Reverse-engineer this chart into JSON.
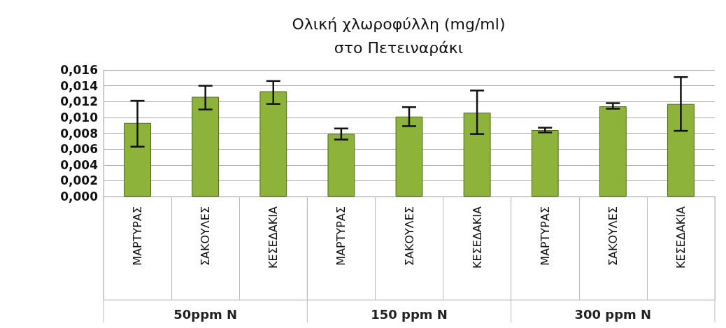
{
  "chart_data": {
    "type": "bar",
    "title": "Ολική χλωροφύλλη (mg/ml)\nστο Πετειναράκι",
    "categories": [
      "ΜΑΡΤΥΡΑΣ",
      "ΣΑΚΟΥΛΕΣ",
      "ΚΕΣΕΔΑΚΙΑ",
      "ΜΑΡΤΥΡΑΣ",
      "ΣΑΚΟΥΛΕΣ",
      "ΚΕΣΕΔΑΚΙΑ",
      "ΜΑΡΤΥΡΑΣ",
      "ΣΑΚΟΥΛΕΣ",
      "ΚΕΣΕΔΑΚΙΑ"
    ],
    "values": [
      0.0093,
      0.0126,
      0.0133,
      0.0079,
      0.0101,
      0.0106,
      0.0084,
      0.0114,
      0.0117
    ],
    "errors": [
      [
        0.0063,
        0.0121
      ],
      [
        0.011,
        0.014
      ],
      [
        0.0117,
        0.0146
      ],
      [
        0.0072,
        0.0086
      ],
      [
        0.0089,
        0.0113
      ],
      [
        0.0079,
        0.0134
      ],
      [
        0.0081,
        0.0087
      ],
      [
        0.0111,
        0.0118
      ],
      [
        0.0083,
        0.0151
      ]
    ],
    "color": "#8db33a",
    "ylim": [
      0,
      0.016
    ],
    "yticks": [
      {
        "value": 0,
        "label": "0,000"
      },
      {
        "value": 0.002,
        "label": "0,002"
      },
      {
        "value": 0.004,
        "label": "0,004"
      },
      {
        "value": 0.006,
        "label": "0,006"
      },
      {
        "value": 0.008,
        "label": "0,008"
      },
      {
        "value": 0.01,
        "label": "0,010"
      },
      {
        "value": 0.012,
        "label": "0,012"
      },
      {
        "value": 0.014,
        "label": "0,014"
      },
      {
        "value": 0.016,
        "label": "0,016"
      }
    ],
    "annotations": [
      "50ppm N",
      "150 ppm N",
      "300 ppm N"
    ],
    "grid": "y"
  }
}
